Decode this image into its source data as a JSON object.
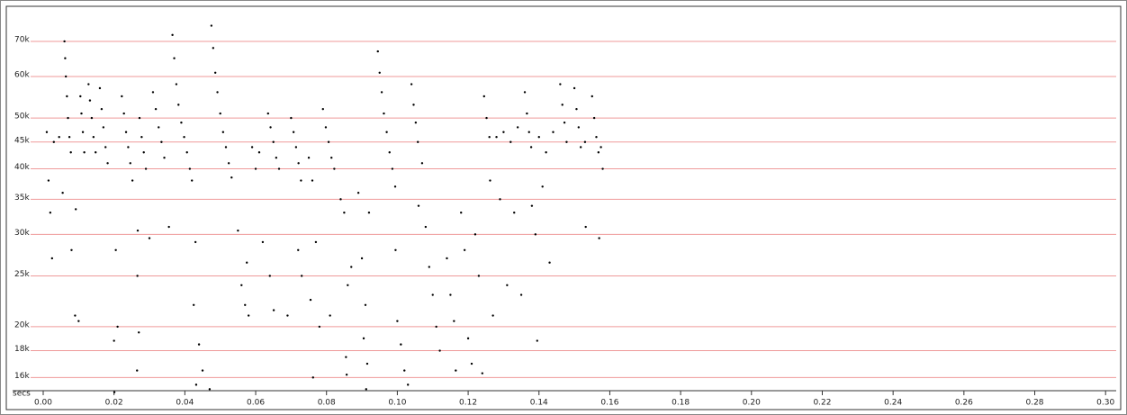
{
  "chart_data": {
    "type": "scatter",
    "xlabel": "secs",
    "log_y": true,
    "grid": true,
    "grid_color": "#ef9a9a",
    "color": "#000000",
    "xlim": [
      0,
      0.303
    ],
    "ylim": [
      15100,
      80700
    ],
    "xticks": [
      {
        "value": 0,
        "label": "0.00"
      },
      {
        "value": 0.02,
        "label": "0.02"
      },
      {
        "value": 0.04,
        "label": "0.04"
      },
      {
        "value": 0.06,
        "label": "0.06"
      },
      {
        "value": 0.08,
        "label": "0.08"
      },
      {
        "value": 0.1,
        "label": "0.10"
      },
      {
        "value": 0.12,
        "label": "0.12"
      },
      {
        "value": 0.14,
        "label": "0.14"
      },
      {
        "value": 0.16,
        "label": "0.16"
      },
      {
        "value": 0.18,
        "label": "0.18"
      },
      {
        "value": 0.2,
        "label": "0.20"
      },
      {
        "value": 0.22,
        "label": "0.22"
      },
      {
        "value": 0.24,
        "label": "0.24"
      },
      {
        "value": 0.26,
        "label": "0.26"
      },
      {
        "value": 0.28,
        "label": "0.28"
      },
      {
        "value": 0.3,
        "label": "0.30"
      }
    ],
    "yticks": [
      {
        "value": 16000,
        "label": "16k"
      },
      {
        "value": 18000,
        "label": "18k"
      },
      {
        "value": 20000,
        "label": "20k"
      },
      {
        "value": 25000,
        "label": "25k"
      },
      {
        "value": 30000,
        "label": "30k"
      },
      {
        "value": 35000,
        "label": "35k"
      },
      {
        "value": 40000,
        "label": "40k"
      },
      {
        "value": 45000,
        "label": "45k"
      },
      {
        "value": 50000,
        "label": "50k"
      },
      {
        "value": 60000,
        "label": "60k"
      },
      {
        "value": 70000,
        "label": "70k"
      }
    ],
    "x": [
      0.006,
      0.0062,
      0.0064,
      0.0067,
      0.007,
      0.0074,
      0.0078,
      0.0105,
      0.0108,
      0.0112,
      0.0116,
      0.0128,
      0.0132,
      0.0137,
      0.0142,
      0.0148,
      0.016,
      0.0165,
      0.017,
      0.0176,
      0.0182,
      0.0222,
      0.0228,
      0.0234,
      0.024,
      0.0246,
      0.0252,
      0.0272,
      0.0278,
      0.0284,
      0.029,
      0.031,
      0.0318,
      0.0326,
      0.0334,
      0.0342,
      0.0365,
      0.037,
      0.0376,
      0.0382,
      0.039,
      0.0398,
      0.0406,
      0.0414,
      0.0475,
      0.048,
      0.0486,
      0.0492,
      0.05,
      0.0508,
      0.0516,
      0.0524,
      0.0532,
      0.0635,
      0.0642,
      0.065,
      0.0658,
      0.0666,
      0.07,
      0.0707,
      0.0714,
      0.0721,
      0.0728,
      0.079,
      0.0798,
      0.0806,
      0.0814,
      0.0822,
      0.0945,
      0.095,
      0.0956,
      0.0962,
      0.097,
      0.0978,
      0.0986,
      0.0994,
      0.104,
      0.1046,
      0.1052,
      0.1058,
      0.1245,
      0.1252,
      0.126,
      0.136,
      0.1366,
      0.1372,
      0.1378,
      0.146,
      0.1466,
      0.1472,
      0.1478,
      0.15,
      0.1506,
      0.1512,
      0.1518,
      0.155,
      0.1556,
      0.1562,
      0.1568,
      0.128,
      0.13,
      0.132,
      0.134,
      0.14,
      0.142,
      0.144,
      0.153,
      0.1575,
      0.001,
      0.0015,
      0.002,
      0.0025,
      0.003,
      0.0045,
      0.0055,
      0.008,
      0.009,
      0.01,
      0.0092,
      0.02,
      0.0205,
      0.021,
      0.0201,
      0.027,
      0.0265,
      0.0266,
      0.0267,
      0.03,
      0.0355,
      0.042,
      0.043,
      0.0425,
      0.044,
      0.045,
      0.047,
      0.0432,
      0.055,
      0.056,
      0.057,
      0.058,
      0.0575,
      0.059,
      0.06,
      0.061,
      0.062,
      0.064,
      0.0651,
      0.069,
      0.072,
      0.073,
      0.075,
      0.076,
      0.0755,
      0.077,
      0.078,
      0.0762,
      0.081,
      0.084,
      0.085,
      0.086,
      0.0855,
      0.0857,
      0.087,
      0.089,
      0.09,
      0.091,
      0.0905,
      0.0915,
      0.092,
      0.0912,
      0.0995,
      0.1,
      0.101,
      0.102,
      0.103,
      0.106,
      0.107,
      0.108,
      0.109,
      0.11,
      0.111,
      0.112,
      0.114,
      0.115,
      0.116,
      0.1165,
      0.118,
      0.119,
      0.12,
      0.121,
      0.122,
      0.123,
      0.124,
      0.1262,
      0.127,
      0.129,
      0.131,
      0.133,
      0.135,
      0.138,
      0.139,
      0.1395,
      0.141,
      0.143,
      0.1532,
      0.157,
      0.158
    ],
    "y": [
      70000,
      65000,
      60000,
      55000,
      50000,
      46000,
      43000,
      55000,
      51000,
      47000,
      43000,
      58000,
      54000,
      50000,
      46000,
      43000,
      57000,
      52000,
      48000,
      44000,
      41000,
      55000,
      51000,
      47000,
      44000,
      41000,
      38000,
      50000,
      46000,
      43000,
      40000,
      56000,
      52000,
      48000,
      45000,
      42000,
      72000,
      65000,
      58000,
      53000,
      49000,
      46000,
      43000,
      40000,
      75000,
      68000,
      61000,
      56000,
      51000,
      47000,
      44000,
      41000,
      38500,
      51000,
      48000,
      45000,
      42000,
      40000,
      50000,
      47000,
      44000,
      41000,
      38000,
      52000,
      48000,
      45000,
      42000,
      40000,
      67000,
      61000,
      56000,
      51000,
      47000,
      43000,
      40000,
      37000,
      58000,
      53000,
      49000,
      45000,
      55000,
      50000,
      46000,
      56000,
      51000,
      47000,
      44000,
      58000,
      53000,
      49000,
      45000,
      57000,
      52000,
      48000,
      44000,
      55000,
      50000,
      46000,
      43000,
      46000,
      47000,
      45000,
      48000,
      46000,
      43000,
      47000,
      45000,
      44000,
      47000,
      38000,
      33000,
      27000,
      45000,
      46000,
      36000,
      28000,
      21000,
      20500,
      33500,
      18800,
      28000,
      20000,
      15000,
      19500,
      16500,
      25000,
      30500,
      29500,
      31000,
      38000,
      29000,
      22000,
      18500,
      16500,
      15200,
      15500,
      30500,
      24000,
      22000,
      21000,
      26500,
      44000,
      40000,
      43000,
      29000,
      25000,
      21500,
      21000,
      28000,
      25000,
      42000,
      38000,
      22500,
      29000,
      20000,
      16000,
      21000,
      35000,
      33000,
      24000,
      17500,
      16200,
      26000,
      36000,
      27000,
      22000,
      19000,
      17000,
      33000,
      15200,
      28000,
      20500,
      18500,
      16500,
      15500,
      34000,
      41000,
      31000,
      26000,
      23000,
      20000,
      18000,
      27000,
      23000,
      20500,
      16500,
      33000,
      28000,
      19000,
      17000,
      30000,
      25000,
      16300,
      38000,
      21000,
      35000,
      24000,
      33000,
      23000,
      34000,
      30000,
      18800,
      37000,
      26500,
      31000,
      29500,
      40000
    ]
  }
}
